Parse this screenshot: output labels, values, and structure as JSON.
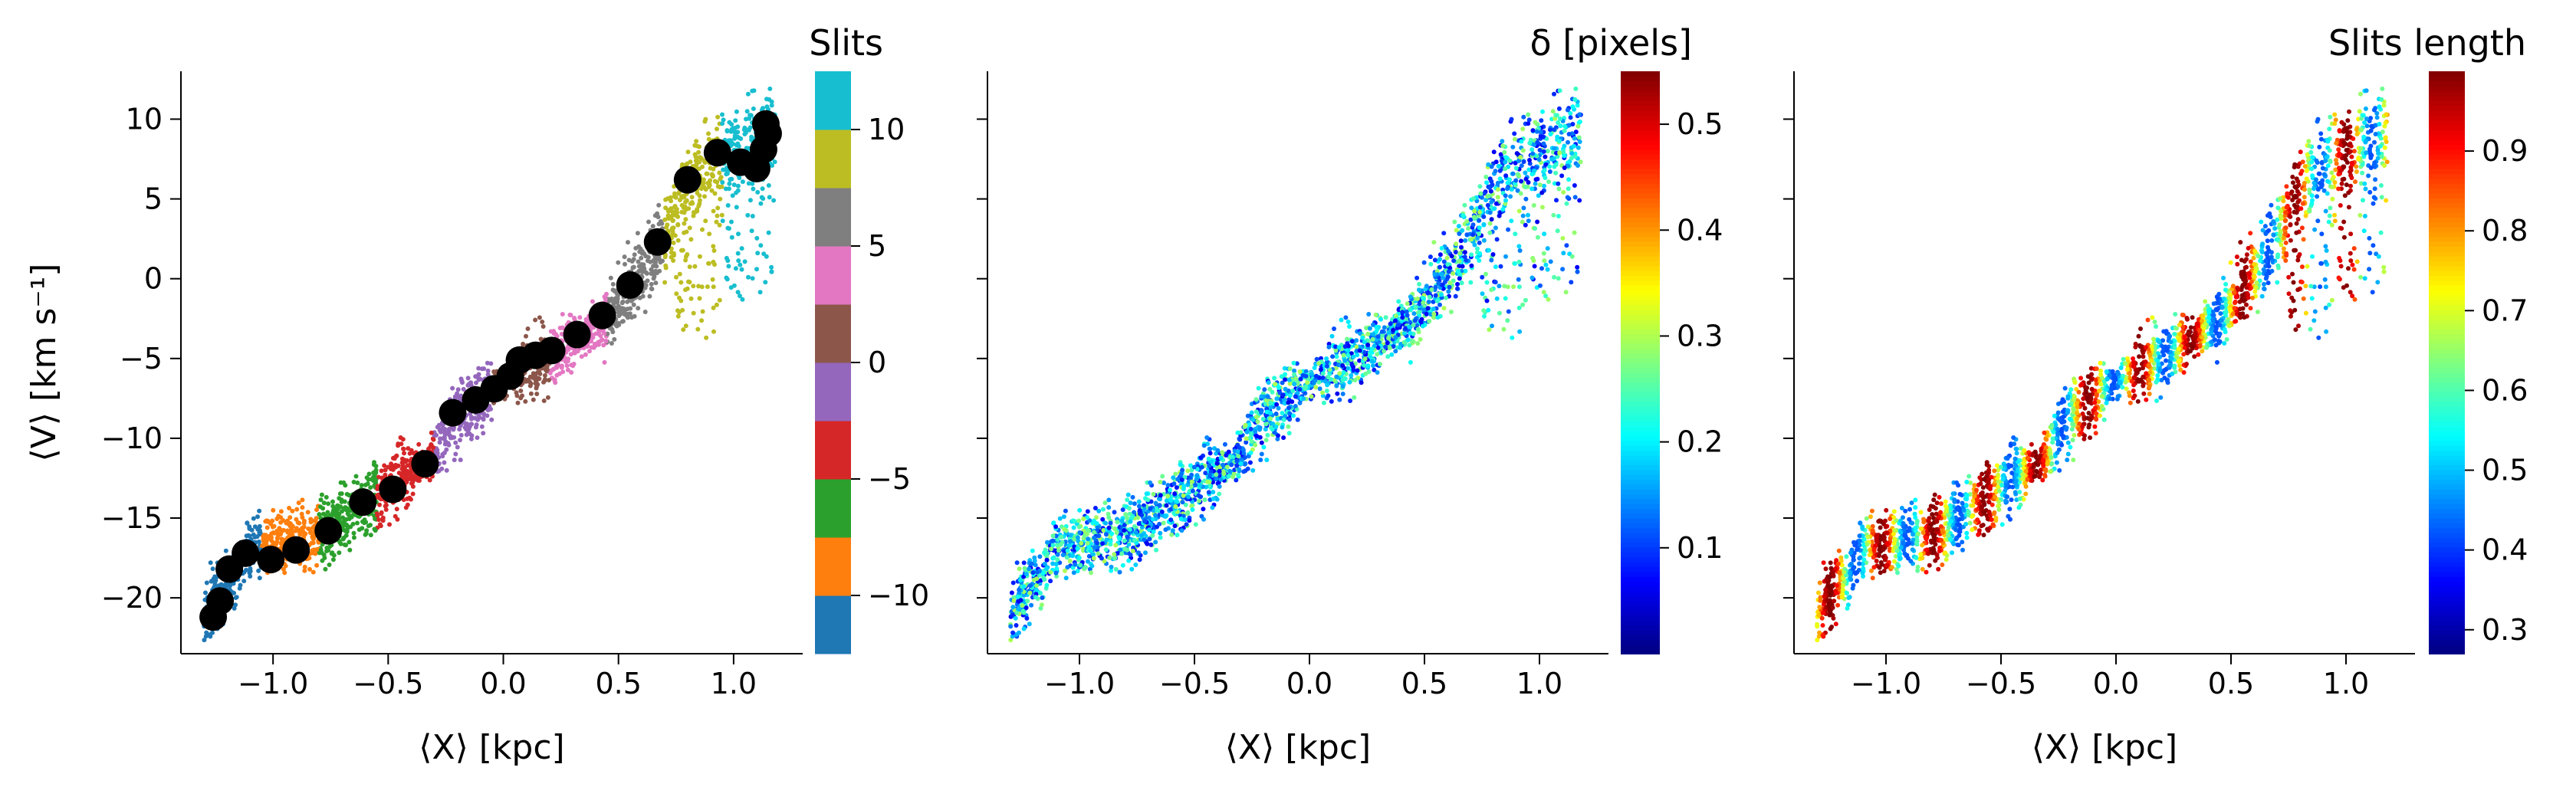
{
  "chart_data": [
    {
      "type": "scatter",
      "xlabel": "⟨X⟩ [kpc]",
      "ylabel": "⟨V⟩ [km s⁻¹]",
      "xlim": [
        -1.4,
        1.3
      ],
      "ylim": [
        -23.5,
        13
      ],
      "xticks": [
        -1.0,
        -0.5,
        0.0,
        0.5,
        1.0
      ],
      "xtick_labels": [
        "−1.0",
        "−0.5",
        "0.0",
        "0.5",
        "1.0"
      ],
      "yticks": [
        -20,
        -15,
        -10,
        -5,
        0,
        5,
        10
      ],
      "ytick_labels": [
        "−20",
        "−15",
        "−10",
        "−5",
        "0",
        "5",
        "10"
      ],
      "grid": false,
      "colorbar": {
        "title": "Slits",
        "colormap": "tab10",
        "range": [
          -12.5,
          12.5
        ],
        "ticks": [
          -10,
          -5,
          0,
          5,
          10
        ],
        "tick_labels": [
          "−10",
          "−5",
          "0",
          "5",
          "10"
        ],
        "colors": [
          "#1f77b4",
          "#ff7f0e",
          "#2ca02c",
          "#d62728",
          "#9467bd",
          "#8c564b",
          "#e377c2",
          "#7f7f7f",
          "#bcbd22",
          "#17becf"
        ]
      },
      "series": [
        {
          "marker": "large black circle",
          "color": "#000000",
          "x": [
            -1.26,
            -1.23,
            -1.19,
            -1.12,
            -1.01,
            -0.9,
            -0.76,
            -0.61,
            -0.48,
            -0.34,
            -0.22,
            -0.12,
            -0.04,
            0.03,
            0.07,
            0.14,
            0.21,
            0.32,
            0.43,
            0.55,
            0.67,
            0.8,
            0.93,
            1.03,
            1.1,
            1.13,
            1.14,
            1.15
          ],
          "y": [
            -21.2,
            -20.2,
            -18.2,
            -17.2,
            -17.6,
            -17.0,
            -15.8,
            -14.0,
            -13.2,
            -11.6,
            -8.4,
            -7.6,
            -6.9,
            -6.1,
            -5.1,
            -4.8,
            -4.5,
            -3.5,
            -2.3,
            -0.4,
            2.3,
            6.2,
            7.9,
            7.3,
            6.9,
            8.1,
            9.7,
            9.1
          ]
        }
      ]
    },
    {
      "type": "scatter",
      "xlabel": "⟨X⟩ [kpc]",
      "ylabel": "",
      "xlim": [
        -1.4,
        1.3
      ],
      "ylim": [
        -23.5,
        13
      ],
      "xticks": [
        -1.0,
        -0.5,
        0.0,
        0.5,
        1.0
      ],
      "xtick_labels": [
        "−1.0",
        "−0.5",
        "0.0",
        "0.5",
        "1.0"
      ],
      "grid": false,
      "colorbar": {
        "title": "δ [pixels]",
        "colormap": "jet",
        "range": [
          0.0,
          0.55
        ],
        "ticks": [
          0.1,
          0.2,
          0.3,
          0.4,
          0.5
        ],
        "tick_labels": [
          "0.1",
          "0.2",
          "0.3",
          "0.4",
          "0.5"
        ]
      }
    },
    {
      "type": "scatter",
      "xlabel": "⟨X⟩ [kpc]",
      "ylabel": "",
      "xlim": [
        -1.4,
        1.3
      ],
      "ylim": [
        -23.5,
        13
      ],
      "xticks": [
        -1.0,
        -0.5,
        0.0,
        0.5,
        1.0
      ],
      "xtick_labels": [
        "−1.0",
        "−0.5",
        "0.0",
        "0.5",
        "1.0"
      ],
      "grid": false,
      "colorbar": {
        "title": "Slits length",
        "colormap": "jet",
        "range": [
          0.27,
          1.0
        ],
        "ticks": [
          0.3,
          0.4,
          0.5,
          0.6,
          0.7,
          0.8,
          0.9
        ],
        "tick_labels": [
          "0.3",
          "0.4",
          "0.5",
          "0.6",
          "0.7",
          "0.8",
          "0.9"
        ]
      }
    }
  ]
}
